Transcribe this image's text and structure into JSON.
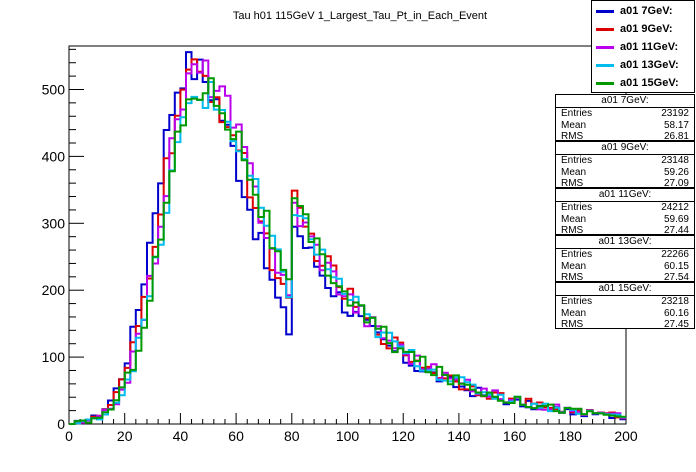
{
  "chart_data": {
    "type": "line",
    "title": "Tau h01 115GeV 1_Largest_Tau_Pt_in_Each_Event",
    "xlabel": "",
    "ylabel": "",
    "xlim": [
      0,
      200
    ],
    "ylim": [
      0,
      565
    ],
    "x_ticks": [
      "0",
      "20",
      "40",
      "60",
      "80",
      "100",
      "120",
      "140",
      "160",
      "180",
      "200"
    ],
    "y_ticks": [
      "0",
      "100",
      "200",
      "300",
      "400",
      "500"
    ],
    "bin_width": 2,
    "series": [
      {
        "name": "a01 7GeV:",
        "color": "#0000cc",
        "peak_x": 43,
        "peak_y": 535,
        "left_width": 12,
        "right_width": 22,
        "tail": 10
      },
      {
        "name": "a01 9GeV:",
        "color": "#dd0000",
        "peak_x": 45,
        "peak_y": 520,
        "left_width": 12.5,
        "right_width": 23,
        "tail": 11
      },
      {
        "name": "a01 11GeV:",
        "color": "#bb00ee",
        "peak_x": 46,
        "peak_y": 527,
        "left_width": 12.5,
        "right_width": 23,
        "tail": 11
      },
      {
        "name": "a01 13GeV:",
        "color": "#00bbee",
        "peak_x": 47,
        "peak_y": 495,
        "left_width": 13,
        "right_width": 23.5,
        "tail": 11
      },
      {
        "name": "a01 15GeV:",
        "color": "#009900",
        "peak_x": 47,
        "peak_y": 505,
        "left_width": 13,
        "right_width": 23.5,
        "tail": 11
      }
    ],
    "stats": [
      {
        "title": "a01 7GeV:",
        "entries": "23192",
        "mean": "58.17",
        "rms": "26.81"
      },
      {
        "title": "a01 9GeV:",
        "entries": "23148",
        "mean": "59.26",
        "rms": "27.09"
      },
      {
        "title": "a01 11GeV:",
        "entries": "24212",
        "mean": "59.69",
        "rms": "27.44"
      },
      {
        "title": "a01 13GeV:",
        "entries": "22266",
        "mean": "60.15",
        "rms": "27.54"
      },
      {
        "title": "a01 15GeV:",
        "entries": "23218",
        "mean": "60.16",
        "rms": "27.45"
      }
    ],
    "stats_labels": {
      "entries": "Entries",
      "mean": "Mean",
      "rms": "RMS"
    }
  }
}
